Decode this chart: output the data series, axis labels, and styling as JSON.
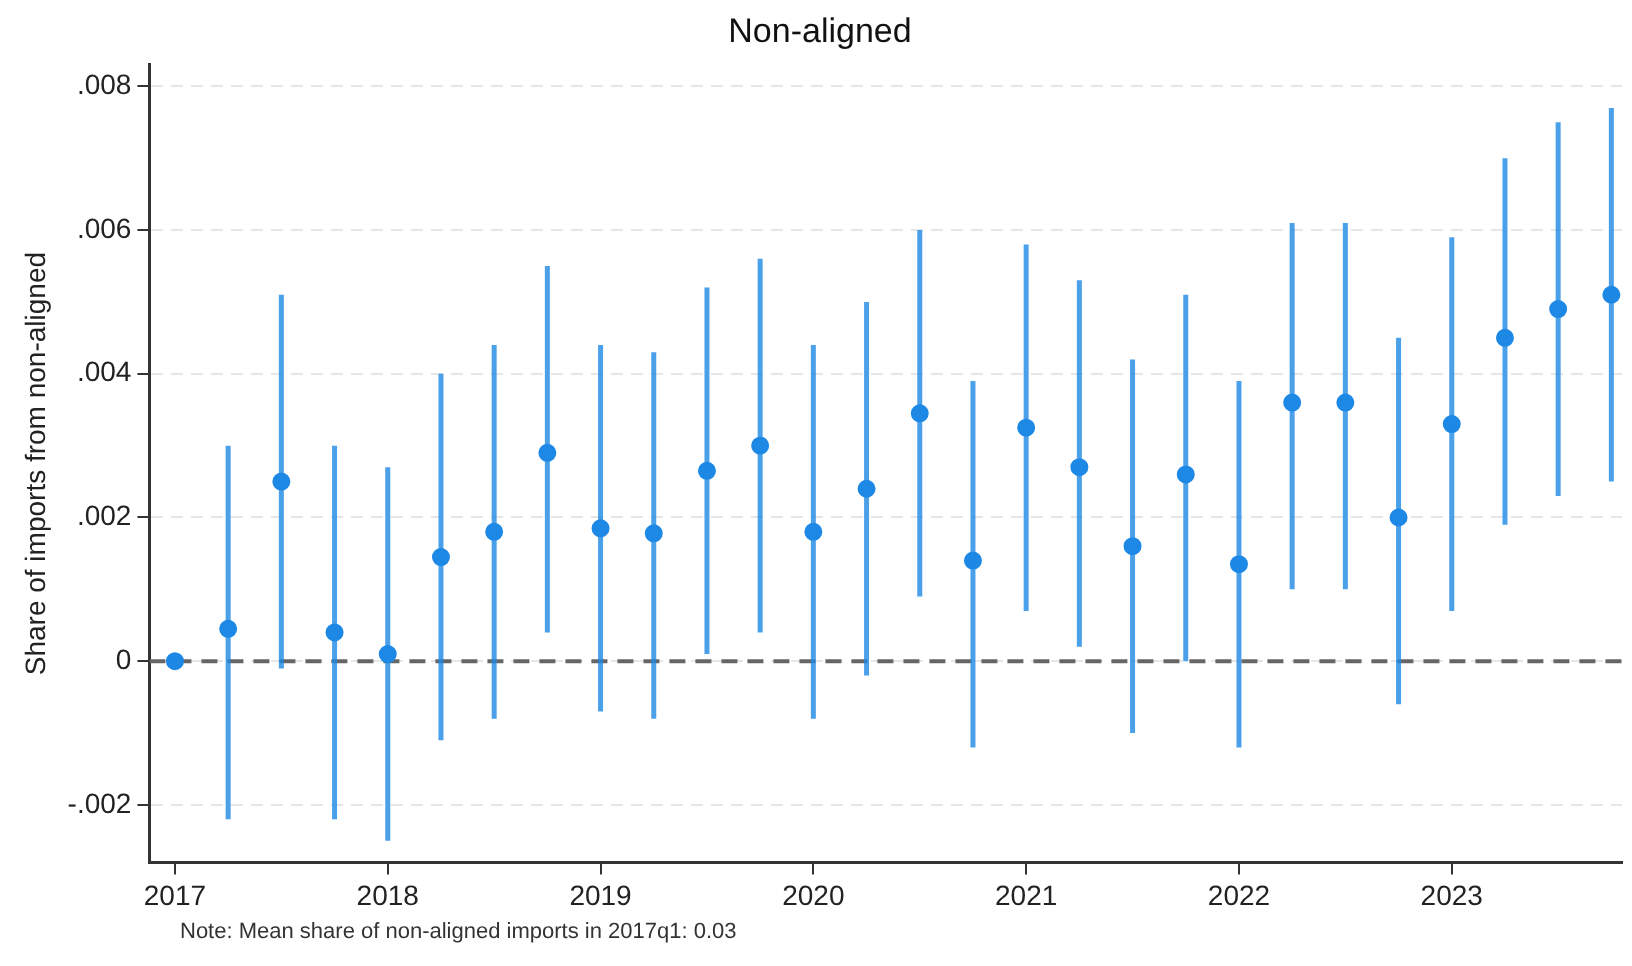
{
  "chart_data": {
    "type": "scatter",
    "title": "Non-aligned",
    "ylabel": "Share of imports from non-aligned",
    "x": [
      2017,
      2017.25,
      2017.5,
      2017.75,
      2018,
      2018.25,
      2018.5,
      2018.75,
      2019,
      2019.25,
      2019.5,
      2019.75,
      2020,
      2020.25,
      2020.5,
      2020.75,
      2021,
      2021.25,
      2021.5,
      2021.75,
      2022,
      2022.25,
      2022.5,
      2022.75,
      2023,
      2023.25,
      2023.5,
      2023.75
    ],
    "series": [
      {
        "color": "#1e88e5",
        "values": [
          0,
          0.00045,
          0.0025,
          0.0004,
          0.0001,
          0.00145,
          0.0018,
          0.0029,
          0.00185,
          0.00178,
          0.00265,
          0.003,
          0.0018,
          0.0024,
          0.00345,
          0.0014,
          0.00325,
          0.0027,
          0.0016,
          0.0026,
          0.00135,
          0.0036,
          0.0036,
          0.002,
          0.0033,
          0.0045,
          0.0049,
          0.0051
        ],
        "errors": [
          null,
          [
            -0.0022,
            0.003
          ],
          [
            -0.0001,
            0.0051
          ],
          [
            -0.0022,
            0.003
          ],
          [
            -0.0025,
            0.0027
          ],
          [
            -0.0011,
            0.004
          ],
          [
            -0.0008,
            0.0044
          ],
          [
            0.0004,
            0.0055
          ],
          [
            -0.0007,
            0.0044
          ],
          [
            -0.0008,
            0.0043
          ],
          [
            0.0001,
            0.0052
          ],
          [
            0.0004,
            0.0056
          ],
          [
            -0.0008,
            0.0044
          ],
          [
            -0.0002,
            0.005
          ],
          [
            0.0009,
            0.006
          ],
          [
            -0.0012,
            0.0039
          ],
          [
            0.0007,
            0.0058
          ],
          [
            0.0002,
            0.0053
          ],
          [
            -0.001,
            0.0042
          ],
          [
            0,
            0.0051
          ],
          [
            -0.0012,
            0.0039
          ],
          [
            0.001,
            0.0061
          ],
          [
            0.001,
            0.0061
          ],
          [
            -0.0006,
            0.0045
          ],
          [
            0.0007,
            0.0059
          ],
          [
            0.0019,
            0.007
          ],
          [
            0.0023,
            0.0075
          ],
          [
            0.0025,
            0.0077
          ]
        ]
      }
    ],
    "xlim": [
      2016.88,
      2023.8
    ],
    "xticks": [
      2017,
      2018,
      2019,
      2020,
      2021,
      2022,
      2023
    ],
    "ylim": [
      -0.0028,
      0.0083
    ],
    "yticks": [
      {
        "value": -0.002,
        "label": "-.002"
      },
      {
        "value": 0,
        "label": "0"
      },
      {
        "value": 0.002,
        "label": ".002"
      },
      {
        "value": 0.004,
        "label": ".004"
      },
      {
        "value": 0.006,
        "label": ".006"
      },
      {
        "value": 0.008,
        "label": ".008"
      }
    ],
    "ref_lines": [
      {
        "axis": "y",
        "value": 0,
        "color": "#666666",
        "line_style": "dashed"
      }
    ],
    "grid": "y",
    "legend": false,
    "marker": "circle",
    "annotations": [
      "Note: Mean share of non-aligned imports in 2017q1: 0.03"
    ]
  }
}
